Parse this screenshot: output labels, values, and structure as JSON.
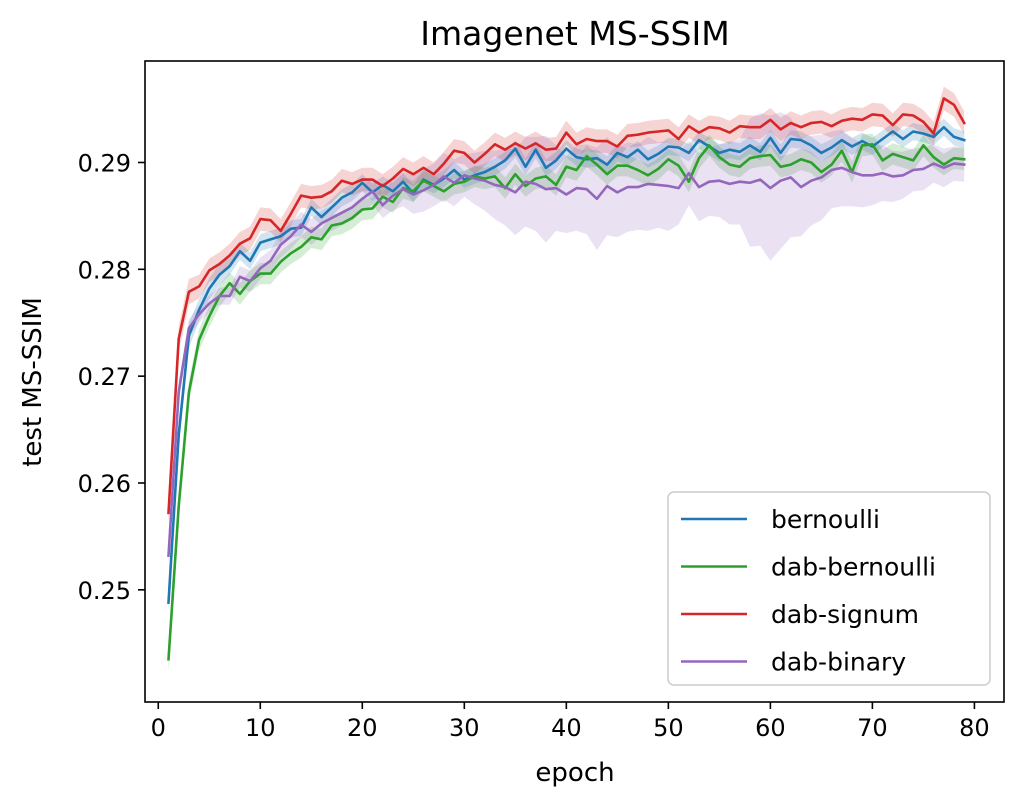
{
  "chart_data": {
    "type": "line",
    "title": "Imagenet MS-SSIM",
    "xlabel": "epoch",
    "ylabel": "test MS-SSIM",
    "xlim": [
      -1.3,
      82.9
    ],
    "ylim": [
      0.2395,
      0.2995
    ],
    "xticks": [
      0,
      10,
      20,
      30,
      40,
      50,
      60,
      70,
      80
    ],
    "yticks": [
      0.25,
      0.26,
      0.27,
      0.28,
      0.29
    ],
    "grid": false,
    "legend_position": "lower-right",
    "shaded_band": "min-max range across runs, alpha 0.2",
    "x": [
      1,
      2,
      3,
      4,
      5,
      6,
      7,
      8,
      9,
      10,
      11,
      12,
      13,
      14,
      15,
      16,
      17,
      18,
      19,
      20,
      21,
      22,
      23,
      24,
      25,
      26,
      27,
      28,
      29,
      30,
      31,
      32,
      33,
      34,
      35,
      36,
      37,
      38,
      39,
      40,
      41,
      42,
      43,
      44,
      45,
      46,
      47,
      48,
      49,
      50,
      51,
      52,
      53,
      54,
      55,
      56,
      57,
      58,
      59,
      60,
      61,
      62,
      63,
      64,
      65,
      66,
      67,
      68,
      69,
      70,
      71,
      72,
      73,
      74,
      75,
      76,
      77,
      78,
      79
    ],
    "series": [
      {
        "name": "bernoulli",
        "color": "#1f77b4",
        "values": [
          0.2488,
          0.2645,
          0.2738,
          0.2762,
          0.2782,
          0.2795,
          0.2803,
          0.2817,
          0.2808,
          0.2825,
          0.2828,
          0.2831,
          0.2838,
          0.2839,
          0.2858,
          0.2849,
          0.2858,
          0.2867,
          0.2872,
          0.2881,
          0.2872,
          0.2879,
          0.2873,
          0.2882,
          0.2871,
          0.2884,
          0.2879,
          0.2885,
          0.2893,
          0.2884,
          0.2888,
          0.2891,
          0.2896,
          0.2902,
          0.2913,
          0.2896,
          0.2912,
          0.2895,
          0.2902,
          0.2913,
          0.2905,
          0.2903,
          0.2904,
          0.2898,
          0.2909,
          0.2905,
          0.2912,
          0.2903,
          0.2908,
          0.2915,
          0.2914,
          0.2909,
          0.2921,
          0.2915,
          0.2909,
          0.2912,
          0.291,
          0.2916,
          0.291,
          0.2923,
          0.2909,
          0.2922,
          0.2921,
          0.2916,
          0.2909,
          0.2914,
          0.2921,
          0.2915,
          0.292,
          0.2915,
          0.2922,
          0.2929,
          0.2922,
          0.2929,
          0.2927,
          0.2924,
          0.2933,
          0.2924,
          0.2921
        ],
        "band": [
          0.0008,
          0.0012,
          0.0012,
          0.001,
          0.001,
          0.001,
          0.0008,
          0.0008,
          0.0008,
          0.0008,
          0.0008,
          0.0008,
          0.0008,
          0.0008,
          0.0008,
          0.0008,
          0.0008,
          0.0008,
          0.0008,
          0.0008,
          0.0008,
          0.0008,
          0.0008,
          0.0008,
          0.0008,
          0.0008,
          0.0008,
          0.0008,
          0.0008,
          0.0008,
          0.0008,
          0.0008,
          0.0008,
          0.0008,
          0.0008,
          0.0008,
          0.0008,
          0.0008,
          0.0008,
          0.0008,
          0.0008,
          0.0008,
          0.0008,
          0.0008,
          0.0008,
          0.0008,
          0.0008,
          0.0008,
          0.0008,
          0.0008,
          0.0008,
          0.0008,
          0.0008,
          0.0008,
          0.0008,
          0.0008,
          0.0008,
          0.0008,
          0.0008,
          0.0008,
          0.0008,
          0.0008,
          0.0008,
          0.0008,
          0.0008,
          0.0008,
          0.0008,
          0.0008,
          0.0008,
          0.0008,
          0.0008,
          0.0008,
          0.0008,
          0.0008,
          0.0008,
          0.0008,
          0.0008,
          0.0008,
          0.0008
        ]
      },
      {
        "name": "dab-bernoulli",
        "color": "#2ca02c",
        "values": [
          0.2435,
          0.2578,
          0.2685,
          0.2734,
          0.2756,
          0.2775,
          0.2787,
          0.2777,
          0.2789,
          0.2796,
          0.2796,
          0.2807,
          0.2815,
          0.2821,
          0.283,
          0.2828,
          0.2841,
          0.2843,
          0.2848,
          0.2856,
          0.2857,
          0.2868,
          0.2863,
          0.2876,
          0.2873,
          0.2883,
          0.2878,
          0.2873,
          0.288,
          0.2882,
          0.2887,
          0.2885,
          0.2887,
          0.2876,
          0.2889,
          0.2878,
          0.2885,
          0.2887,
          0.2879,
          0.2896,
          0.2893,
          0.2906,
          0.2898,
          0.2889,
          0.2897,
          0.2897,
          0.2893,
          0.2888,
          0.2894,
          0.2903,
          0.2897,
          0.2882,
          0.2904,
          0.2916,
          0.2905,
          0.2898,
          0.2896,
          0.2904,
          0.2906,
          0.2907,
          0.2896,
          0.2898,
          0.2903,
          0.29,
          0.2891,
          0.2898,
          0.2911,
          0.2891,
          0.2916,
          0.2917,
          0.2902,
          0.2908,
          0.2905,
          0.2902,
          0.2916,
          0.2905,
          0.2898,
          0.2904,
          0.2903
        ],
        "band": [
          0.0012,
          0.0012,
          0.001,
          0.001,
          0.001,
          0.001,
          0.001,
          0.001,
          0.001,
          0.001,
          0.001,
          0.001,
          0.001,
          0.001,
          0.001,
          0.001,
          0.001,
          0.001,
          0.001,
          0.001,
          0.001,
          0.001,
          0.001,
          0.001,
          0.001,
          0.001,
          0.001,
          0.001,
          0.001,
          0.001,
          0.001,
          0.001,
          0.001,
          0.001,
          0.001,
          0.001,
          0.001,
          0.001,
          0.001,
          0.001,
          0.001,
          0.001,
          0.001,
          0.001,
          0.001,
          0.001,
          0.001,
          0.001,
          0.001,
          0.001,
          0.001,
          0.001,
          0.001,
          0.001,
          0.001,
          0.001,
          0.001,
          0.001,
          0.001,
          0.001,
          0.001,
          0.001,
          0.001,
          0.001,
          0.001,
          0.001,
          0.001,
          0.001,
          0.001,
          0.001,
          0.001,
          0.001,
          0.001,
          0.001,
          0.001,
          0.001,
          0.001,
          0.001,
          0.001
        ]
      },
      {
        "name": "dab-signum",
        "color": "#d62728",
        "values": [
          0.2572,
          0.2735,
          0.2779,
          0.2784,
          0.2799,
          0.2805,
          0.2813,
          0.2824,
          0.2829,
          0.2847,
          0.2846,
          0.2836,
          0.2852,
          0.2869,
          0.2867,
          0.2868,
          0.2873,
          0.2883,
          0.288,
          0.2884,
          0.2884,
          0.2878,
          0.2885,
          0.2894,
          0.2889,
          0.2895,
          0.2889,
          0.2899,
          0.2911,
          0.2909,
          0.29,
          0.2908,
          0.2917,
          0.2912,
          0.2918,
          0.2913,
          0.2918,
          0.2912,
          0.2913,
          0.2928,
          0.2917,
          0.2922,
          0.292,
          0.292,
          0.2915,
          0.2925,
          0.2926,
          0.2928,
          0.2929,
          0.293,
          0.2922,
          0.2934,
          0.2928,
          0.2933,
          0.2932,
          0.2928,
          0.2934,
          0.2933,
          0.2933,
          0.294,
          0.2931,
          0.2937,
          0.2933,
          0.2937,
          0.2938,
          0.2934,
          0.2939,
          0.2941,
          0.294,
          0.2945,
          0.2944,
          0.2935,
          0.2945,
          0.2944,
          0.2938,
          0.2927,
          0.296,
          0.2954,
          0.2937
        ],
        "band": [
          0.001,
          0.0012,
          0.0012,
          0.0011,
          0.0011,
          0.0011,
          0.0011,
          0.0011,
          0.0011,
          0.0011,
          0.0011,
          0.0011,
          0.0011,
          0.0011,
          0.0011,
          0.0011,
          0.0011,
          0.0011,
          0.0011,
          0.0011,
          0.0011,
          0.0011,
          0.0011,
          0.0011,
          0.0011,
          0.0011,
          0.0011,
          0.0011,
          0.0011,
          0.0011,
          0.0011,
          0.0011,
          0.0011,
          0.0011,
          0.0011,
          0.0011,
          0.0011,
          0.0011,
          0.0011,
          0.0011,
          0.0011,
          0.0011,
          0.0011,
          0.0011,
          0.0011,
          0.0011,
          0.0011,
          0.0011,
          0.0011,
          0.0011,
          0.0011,
          0.0011,
          0.0011,
          0.0011,
          0.0011,
          0.0011,
          0.0011,
          0.0011,
          0.0011,
          0.0011,
          0.0011,
          0.0011,
          0.0011,
          0.0011,
          0.0011,
          0.0011,
          0.0011,
          0.0011,
          0.0011,
          0.0011,
          0.0011,
          0.0011,
          0.0011,
          0.0011,
          0.0011,
          0.0011,
          0.0011,
          0.0011,
          0.0011
        ]
      },
      {
        "name": "dab-binary",
        "color": "#9467bd",
        "values": [
          0.2532,
          0.2685,
          0.2745,
          0.2758,
          0.2768,
          0.2775,
          0.2775,
          0.2793,
          0.2789,
          0.2801,
          0.2808,
          0.2823,
          0.2831,
          0.2842,
          0.2835,
          0.2843,
          0.2848,
          0.2853,
          0.2858,
          0.2866,
          0.2873,
          0.286,
          0.2869,
          0.2875,
          0.287,
          0.2874,
          0.2879,
          0.2887,
          0.2881,
          0.2888,
          0.2885,
          0.2883,
          0.2879,
          0.2877,
          0.2872,
          0.2882,
          0.288,
          0.2875,
          0.2876,
          0.287,
          0.2876,
          0.2875,
          0.2866,
          0.2878,
          0.2872,
          0.2877,
          0.2877,
          0.288,
          0.2879,
          0.2878,
          0.2876,
          0.289,
          0.2877,
          0.2882,
          0.2883,
          0.288,
          0.2882,
          0.2881,
          0.2884,
          0.2876,
          0.2883,
          0.2886,
          0.2877,
          0.2883,
          0.2886,
          0.2893,
          0.2895,
          0.2891,
          0.2888,
          0.2888,
          0.289,
          0.2887,
          0.2888,
          0.2893,
          0.2894,
          0.2899,
          0.2895,
          0.2899,
          0.2898
        ],
        "band": [
          0.0007,
          0.001,
          0.0008,
          0.0008,
          0.0008,
          0.0008,
          0.0008,
          0.001,
          0.001,
          0.001,
          0.001,
          0.0012,
          0.0012,
          0.0012,
          0.0012,
          0.0012,
          0.0012,
          0.0012,
          0.0012,
          0.0012,
          0.0012,
          0.0012,
          0.0014,
          0.0016,
          0.0018,
          0.002,
          0.002,
          0.0022,
          0.0022,
          0.002,
          0.0024,
          0.0028,
          0.0032,
          0.0036,
          0.004,
          0.0042,
          0.0044,
          0.005,
          0.004,
          0.0036,
          0.004,
          0.0042,
          0.0048,
          0.0046,
          0.0042,
          0.0042,
          0.004,
          0.0044,
          0.004,
          0.0042,
          0.0034,
          0.003,
          0.0032,
          0.0032,
          0.0034,
          0.0038,
          0.004,
          0.006,
          0.0062,
          0.0068,
          0.0064,
          0.0056,
          0.0046,
          0.0042,
          0.004,
          0.0036,
          0.0036,
          0.0032,
          0.003,
          0.0028,
          0.0026,
          0.0024,
          0.0022,
          0.002,
          0.002,
          0.0018,
          0.0018,
          0.0016,
          0.0016
        ]
      }
    ]
  }
}
